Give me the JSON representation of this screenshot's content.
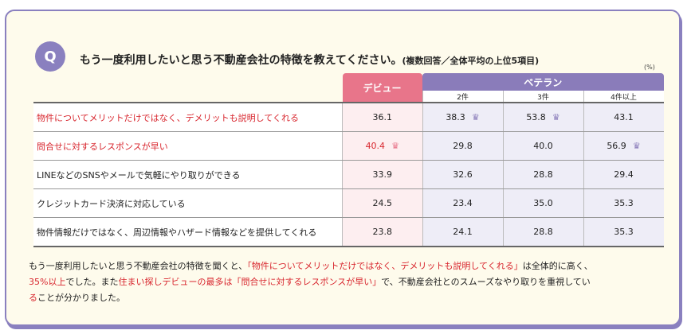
{
  "question": {
    "icon": "Q",
    "title": "もう一度利用したいと思う不動産会社の特徴を教えてください。",
    "note": "(複数回答／全体平均の上位5項目)",
    "unit": "(%)"
  },
  "table": {
    "debut_label": "デビュー",
    "veteran_label": "ベテラン",
    "sub_columns": [
      "2件",
      "3件",
      "4件以上"
    ],
    "rows": [
      {
        "label": "物件についてメリットだけではなく、デメリットも説明してくれる",
        "highlight": true,
        "values": [
          "36.1",
          "38.3",
          "53.8",
          "43.1"
        ],
        "crowns": [
          false,
          true,
          true,
          false
        ]
      },
      {
        "label": "問合せに対するレスポンスが早い",
        "highlight": true,
        "values": [
          "40.4",
          "29.8",
          "40.0",
          "56.9"
        ],
        "crowns": [
          true,
          false,
          false,
          true
        ]
      },
      {
        "label": "LINEなどのSNSやメールで気軽にやり取りができる",
        "highlight": false,
        "values": [
          "33.9",
          "32.6",
          "28.8",
          "29.4"
        ],
        "crowns": [
          false,
          false,
          false,
          false
        ]
      },
      {
        "label": "クレジットカード決済に対応している",
        "highlight": false,
        "values": [
          "24.5",
          "23.4",
          "35.0",
          "35.3"
        ],
        "crowns": [
          false,
          false,
          false,
          false
        ]
      },
      {
        "label": "物件情報だけではなく、周辺情報やハザード情報などを提供してくれる",
        "highlight": false,
        "values": [
          "23.8",
          "24.1",
          "28.8",
          "35.3"
        ],
        "crowns": [
          false,
          false,
          false,
          false
        ]
      }
    ]
  },
  "summary": {
    "p1": "もう一度利用したいと思う不動産会社の特徴を聞くと、",
    "p2": "「物件についてメリットだけではなく、デメリットも説明してくれる」",
    "p3": "は全体的に高く、",
    "p4": "35%以上",
    "p5": "でした。また",
    "p6": "住まい探しデビューの最多は",
    "p7": "「問合せに対するレスポンスが早い」",
    "p8": "で、不動産会社とのスムーズなやり取りを重視してい",
    "p9": "る",
    "p10": "ことが分かりました。"
  },
  "colors": {
    "accent": "#8a80bf",
    "debut": "#e8758a",
    "highlight_text": "#d8262e"
  }
}
